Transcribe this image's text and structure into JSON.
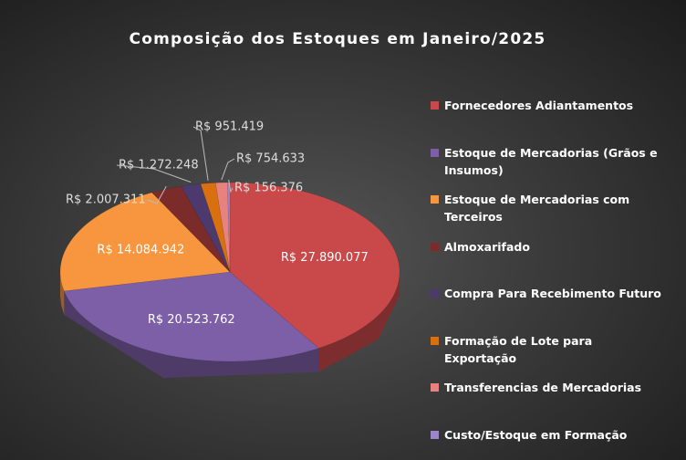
{
  "chart_data": {
    "type": "pie3d",
    "title": "Composição dos Estoques em Janeiro/2025",
    "categories": [
      "Fornecedores Adiantamentos",
      "Estoque de Mercadorias (Grãos e Insumos)",
      "Estoque de Mercadorias com Terceiros",
      "Almoxarifado",
      "Compra Para Recebimento Futuro",
      "Formação de Lote para Exportação",
      "Transferencias de Mercadorias",
      "Custo/Estoque em Formação"
    ],
    "values": [
      27890077,
      20523762,
      14084942,
      2007311,
      1272248,
      951419,
      754633,
      156376
    ],
    "value_labels": [
      "R$ 27.890.077",
      "R$ 20.523.762",
      "R$ 14.084.942",
      "R$ 2.007.311",
      "R$ 1.272.248",
      "R$ 951.419",
      "R$ 754.633",
      "R$ 156.376"
    ],
    "colors": [
      "#c9484a",
      "#7d5fa8",
      "#f7963f",
      "#7a2b2a",
      "#4c3a6e",
      "#d9700f",
      "#e8827e",
      "#9b86c6"
    ],
    "legend": "right"
  }
}
